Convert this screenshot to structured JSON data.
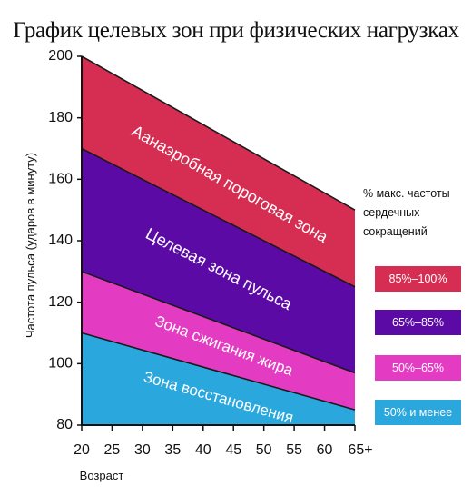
{
  "chart_data": {
    "type": "area",
    "title": "График целевых зон при физических нагрузках",
    "xlabel": "Возраст",
    "ylabel": "Частота пульса (ударов в минуту)",
    "x_ticks": [
      "20",
      "25",
      "30",
      "35",
      "40",
      "45",
      "50",
      "55",
      "60",
      "65+"
    ],
    "x": [
      20,
      65
    ],
    "xlim": [
      20,
      65
    ],
    "y_ticks": [
      80,
      100,
      120,
      140,
      160,
      180,
      200
    ],
    "ylim": [
      80,
      200
    ],
    "grid": false,
    "legend_placement": "right",
    "legend_title": "% макс. частоты сердечных сокращений",
    "series": [
      {
        "label": "Зона восстановления",
        "legend": "50% и менее",
        "color": "#2aa8dd",
        "lower": [
          80,
          80
        ],
        "upper": [
          110,
          85
        ]
      },
      {
        "label": "Зона сжигания жира",
        "legend": "50%–65%",
        "color": "#e33cc2",
        "lower": [
          110,
          85
        ],
        "upper": [
          130,
          97
        ]
      },
      {
        "label": "Целевая зона пульса",
        "legend": "65%–85%",
        "color": "#5b0aa6",
        "lower": [
          130,
          97
        ],
        "upper": [
          170,
          125
        ]
      },
      {
        "label": "Аанаэробная пороговая зона",
        "legend": "85%–100%",
        "color": "#d62d52",
        "lower": [
          170,
          125
        ],
        "upper": [
          200,
          150
        ]
      }
    ]
  }
}
